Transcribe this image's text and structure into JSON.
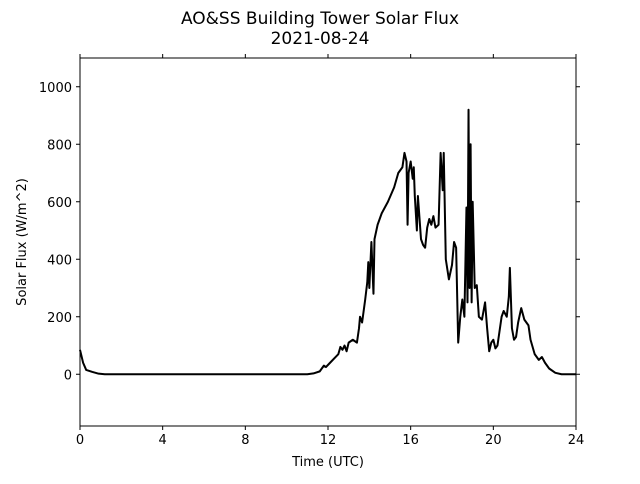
{
  "chart_data": {
    "type": "line",
    "title": "AO&SS Building Tower Solar Flux",
    "subtitle": "2021-08-24",
    "x_label": "Time (UTC)",
    "y_label": "Solar Flux (W/m^2)",
    "color": "#000000",
    "xlim": [
      0,
      24
    ],
    "xticks": [
      0,
      4,
      8,
      12,
      16,
      20,
      24
    ],
    "ylim": [
      -180,
      1100
    ],
    "yticks": [
      0,
      200,
      400,
      600,
      800,
      1000
    ],
    "x": [
      0,
      0.15,
      0.3,
      0.6,
      0.9,
      1.2,
      11.0,
      11.3,
      11.6,
      11.8,
      11.9,
      12.1,
      12.3,
      12.5,
      12.6,
      12.7,
      12.8,
      12.9,
      13.0,
      13.2,
      13.4,
      13.5,
      13.55,
      13.65,
      13.8,
      13.9,
      13.95,
      14.0,
      14.1,
      14.2,
      14.25,
      14.4,
      14.6,
      14.9,
      15.2,
      15.4,
      15.6,
      15.7,
      15.8,
      15.85,
      15.9,
      16.0,
      16.1,
      16.15,
      16.2,
      16.3,
      16.35,
      16.5,
      16.6,
      16.7,
      16.8,
      16.9,
      17.0,
      17.1,
      17.2,
      17.35,
      17.45,
      17.55,
      17.6,
      17.7,
      17.85,
      18.0,
      18.1,
      18.2,
      18.3,
      18.4,
      18.5,
      18.6,
      18.7,
      18.75,
      18.8,
      18.85,
      18.9,
      18.95,
      19.0,
      19.1,
      19.2,
      19.3,
      19.45,
      19.6,
      19.7,
      19.8,
      19.9,
      20.0,
      20.1,
      20.2,
      20.4,
      20.5,
      20.65,
      20.75,
      20.8,
      20.9,
      21.0,
      21.1,
      21.2,
      21.35,
      21.5,
      21.7,
      21.8,
      22.0,
      22.2,
      22.35,
      22.5,
      22.7,
      23.0,
      23.3,
      24
    ],
    "values": [
      85,
      40,
      15,
      8,
      2,
      0,
      0,
      3,
      10,
      30,
      25,
      40,
      55,
      70,
      95,
      85,
      100,
      80,
      110,
      120,
      110,
      160,
      200,
      180,
      260,
      320,
      390,
      300,
      460,
      280,
      470,
      520,
      560,
      600,
      650,
      700,
      720,
      770,
      740,
      520,
      700,
      740,
      680,
      720,
      620,
      500,
      620,
      470,
      450,
      440,
      510,
      540,
      520,
      550,
      510,
      520,
      770,
      640,
      770,
      400,
      330,
      380,
      460,
      440,
      110,
      200,
      260,
      200,
      580,
      250,
      920,
      300,
      800,
      250,
      600,
      300,
      310,
      200,
      190,
      250,
      160,
      80,
      110,
      120,
      90,
      100,
      200,
      220,
      200,
      270,
      370,
      160,
      120,
      130,
      180,
      230,
      190,
      170,
      120,
      70,
      50,
      60,
      40,
      20,
      5,
      0,
      0
    ]
  }
}
